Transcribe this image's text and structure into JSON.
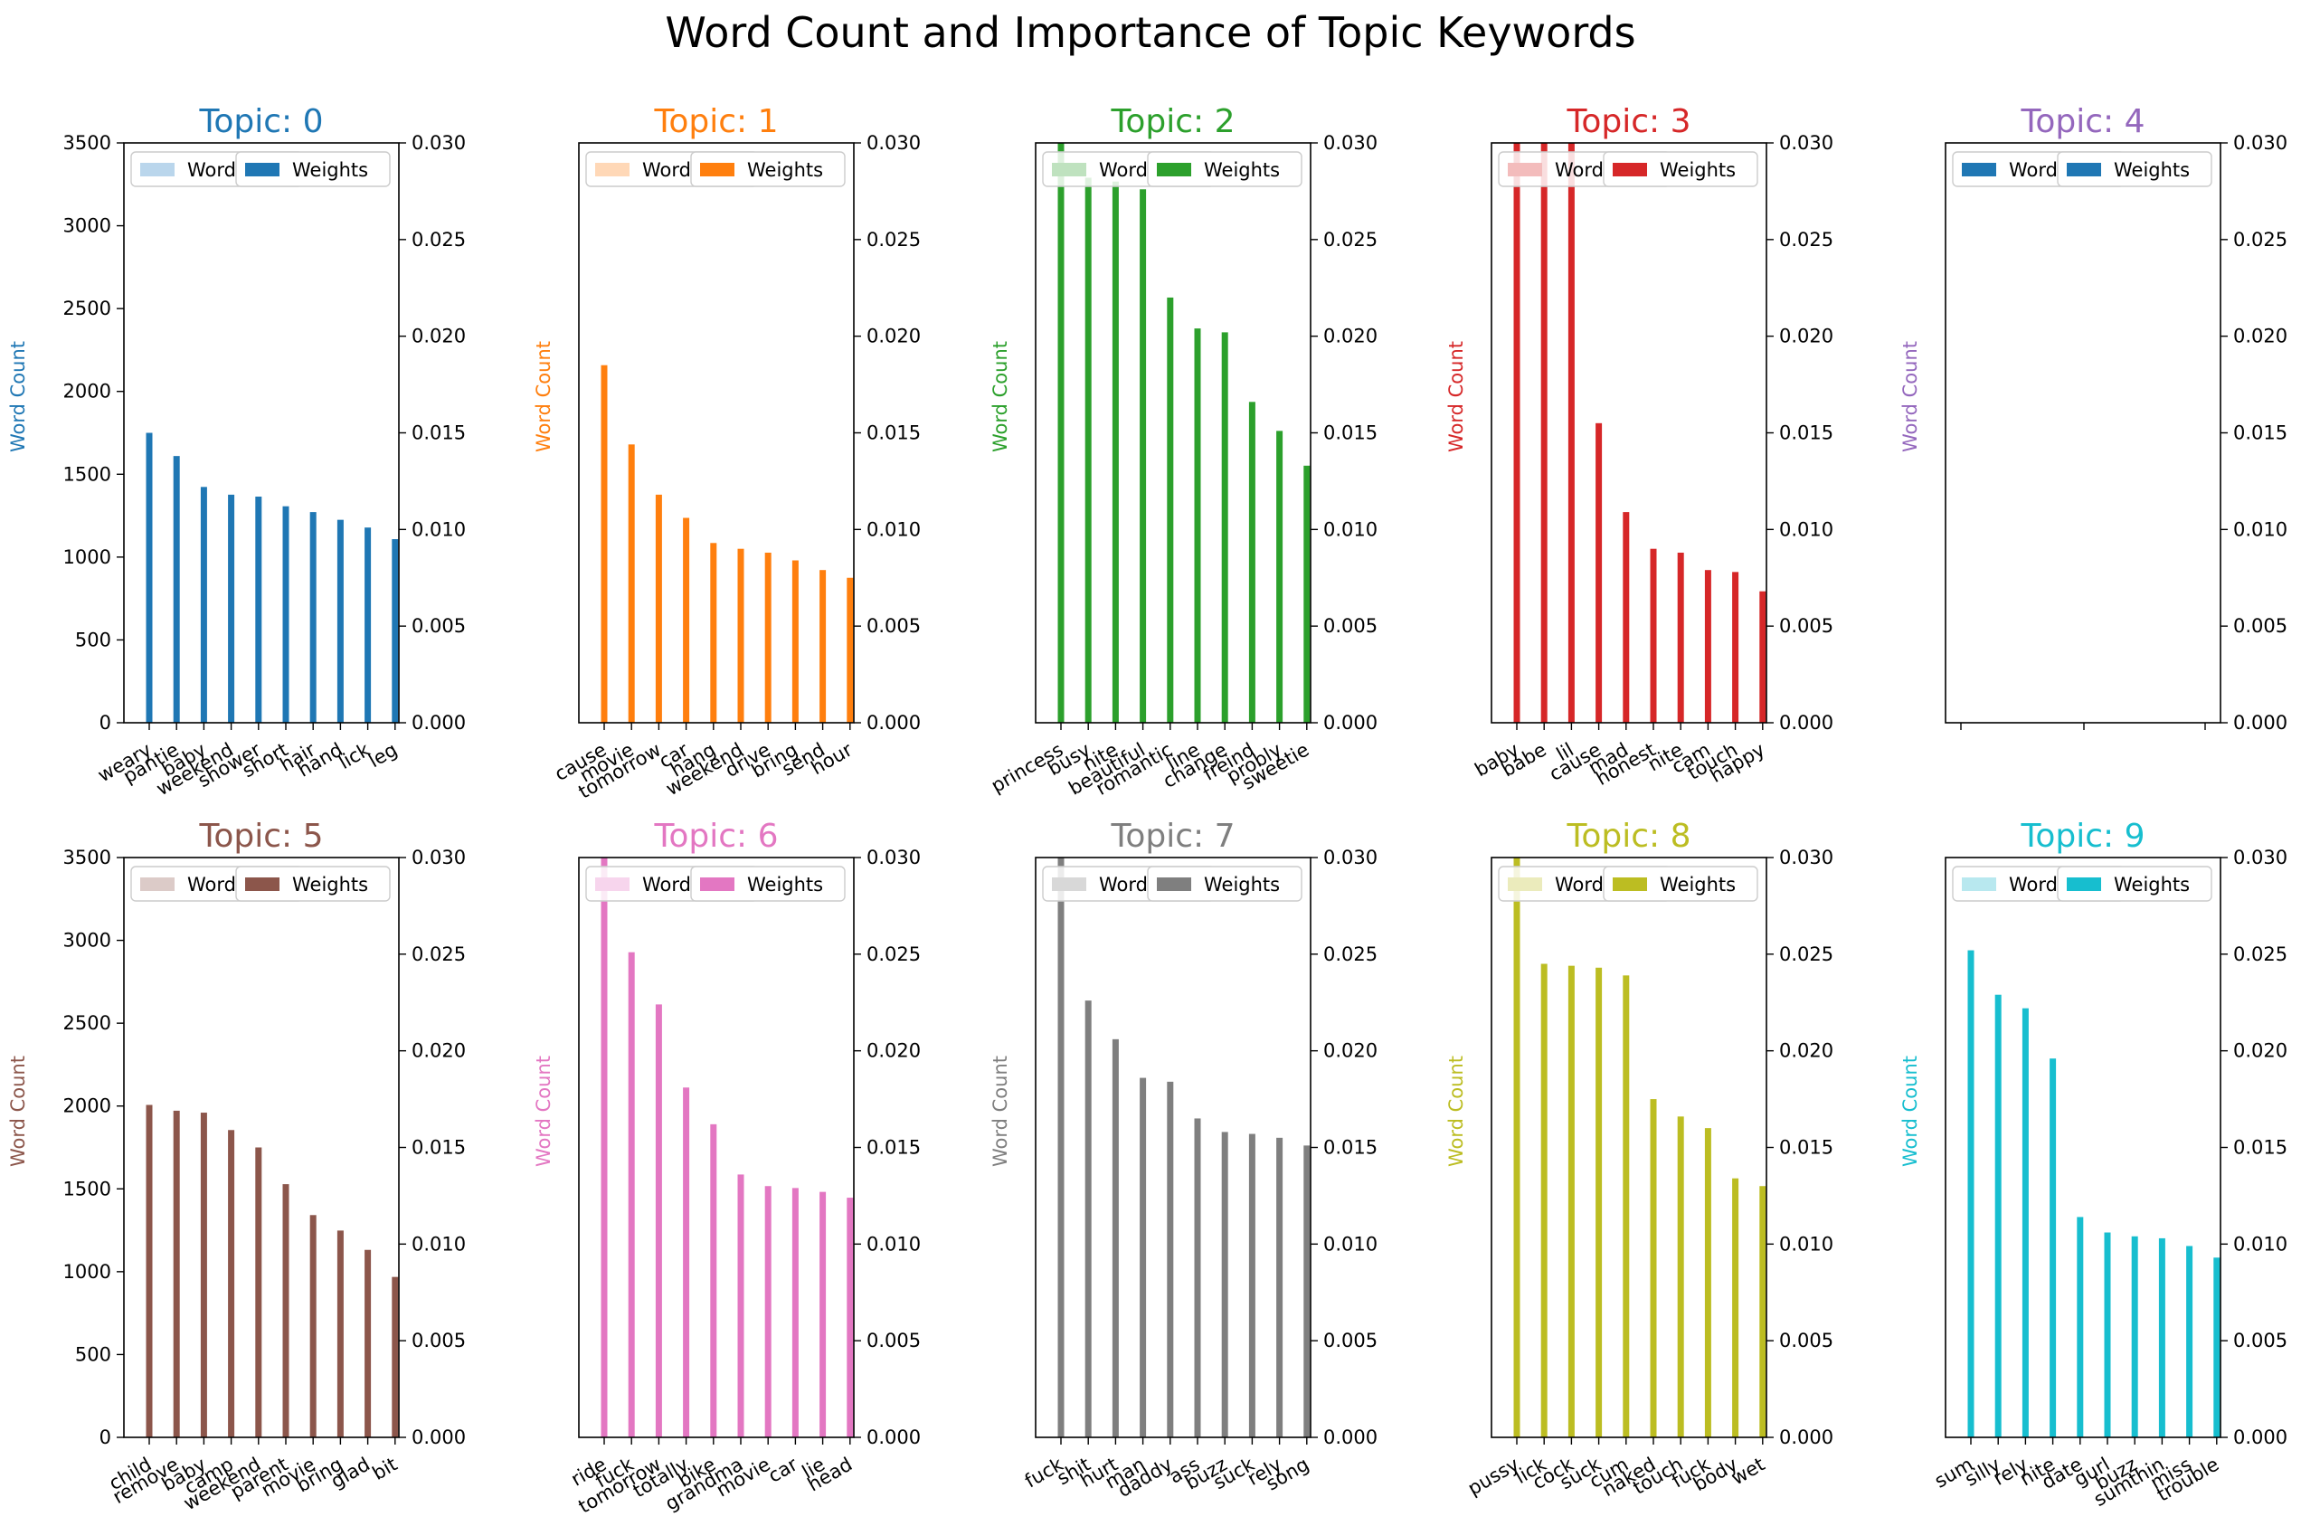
{
  "title": "Word Count and Importance of Topic Keywords",
  "chart_data": {
    "type": "bar",
    "left_axis": {
      "label": "Word Count",
      "ylim": [
        0,
        3500
      ],
      "ticks": [
        "0",
        "500",
        "1000",
        "1500",
        "2000",
        "2500",
        "3000",
        "3500"
      ]
    },
    "right_axis": {
      "ylim": [
        0,
        0.03
      ],
      "ticks": [
        "0.000",
        "0.005",
        "0.010",
        "0.015",
        "0.020",
        "0.025",
        "0.030"
      ]
    },
    "legend": {
      "entries": [
        "Word Count",
        "Weights"
      ],
      "placement": "upper-left"
    },
    "topics": [
      {
        "title": "Topic: 0",
        "color": "#1f77b4",
        "light": "#bad6ec",
        "words": [
          "weary",
          "pantie",
          "baby",
          "weekend",
          "shower",
          "short",
          "hair",
          "hand",
          "lick",
          "leg"
        ],
        "weights": [
          0.015,
          0.0138,
          0.0122,
          0.0118,
          0.0117,
          0.0112,
          0.0109,
          0.0105,
          0.0101,
          0.0095
        ]
      },
      {
        "title": "Topic: 1",
        "color": "#ff7f0e",
        "light": "#ffd8b7",
        "words": [
          "cause",
          "movie",
          "tomorrow",
          "car",
          "hang",
          "weekend",
          "drive",
          "bring",
          "send",
          "hour"
        ],
        "weights": [
          0.0185,
          0.0144,
          0.0118,
          0.0106,
          0.0093,
          0.009,
          0.0088,
          0.0084,
          0.0079,
          0.0075
        ]
      },
      {
        "title": "Topic: 2",
        "color": "#2ca02c",
        "light": "#bfe2bf",
        "words": [
          "princess",
          "busy",
          "nite",
          "beautiful",
          "romantic",
          "line",
          "change",
          "freind",
          "probly",
          "sweetie"
        ],
        "weights": [
          0.03,
          0.0282,
          0.028,
          0.0276,
          0.022,
          0.0204,
          0.0202,
          0.0166,
          0.0151,
          0.0133
        ]
      },
      {
        "title": "Topic: 3",
        "color": "#d62728",
        "light": "#f3bcbc",
        "words": [
          "baby",
          "babe",
          "lil",
          "cause",
          "mad",
          "honest",
          "nite",
          "cam",
          "touch",
          "happy"
        ],
        "weights": [
          0.03,
          0.03,
          0.03,
          0.0155,
          0.0109,
          0.009,
          0.0088,
          0.0079,
          0.0078,
          0.0068
        ]
      },
      {
        "title": "Topic: 4",
        "color": "#9467bd",
        "light": "#1f77b4",
        "legend_color": "#1f77b4",
        "words": [],
        "weights": []
      },
      {
        "title": "Topic: 5",
        "color": "#8c564b",
        "light": "#dccbc8",
        "words": [
          "child",
          "remove",
          "baby",
          "camp",
          "weekend",
          "parent",
          "movie",
          "bring",
          "glad",
          "bit"
        ],
        "weights": [
          0.0172,
          0.0169,
          0.0168,
          0.0159,
          0.015,
          0.0131,
          0.0115,
          0.0107,
          0.0097,
          0.0083
        ]
      },
      {
        "title": "Topic: 6",
        "color": "#e377c2",
        "light": "#f7d5ed",
        "words": [
          "ride",
          "fuck",
          "tomorrow",
          "totally",
          "bike",
          "grandma",
          "movie",
          "car",
          "lie",
          "head"
        ],
        "weights": [
          0.03,
          0.0251,
          0.0224,
          0.0181,
          0.0162,
          0.0136,
          0.013,
          0.0129,
          0.0127,
          0.0124
        ]
      },
      {
        "title": "Topic: 7",
        "color": "#7f7f7f",
        "light": "#d8d8d8",
        "words": [
          "fuck",
          "shit",
          "hurt",
          "man",
          "daddy",
          "ass",
          "buzz",
          "suck",
          "rely",
          "song"
        ],
        "weights": [
          0.03,
          0.0226,
          0.0206,
          0.0186,
          0.0184,
          0.0165,
          0.0158,
          0.0157,
          0.0155,
          0.0151
        ]
      },
      {
        "title": "Topic: 8",
        "color": "#bcbd22",
        "light": "#ebebbc",
        "words": [
          "pussy",
          "lick",
          "cock",
          "suck",
          "cum",
          "naked",
          "touch",
          "fuck",
          "body",
          "wet"
        ],
        "weights": [
          0.03,
          0.0245,
          0.0244,
          0.0243,
          0.0239,
          0.0175,
          0.0166,
          0.016,
          0.0134,
          0.013
        ]
      },
      {
        "title": "Topic: 9",
        "color": "#17becf",
        "light": "#b8e8ef",
        "words": [
          "sum",
          "silly",
          "rely",
          "nite",
          "date",
          "gurl",
          "buzz",
          "sumthin",
          "miss",
          "trouble"
        ],
        "weights": [
          0.0252,
          0.0229,
          0.0222,
          0.0196,
          0.0114,
          0.0106,
          0.0104,
          0.0103,
          0.0099,
          0.0093
        ]
      }
    ]
  }
}
